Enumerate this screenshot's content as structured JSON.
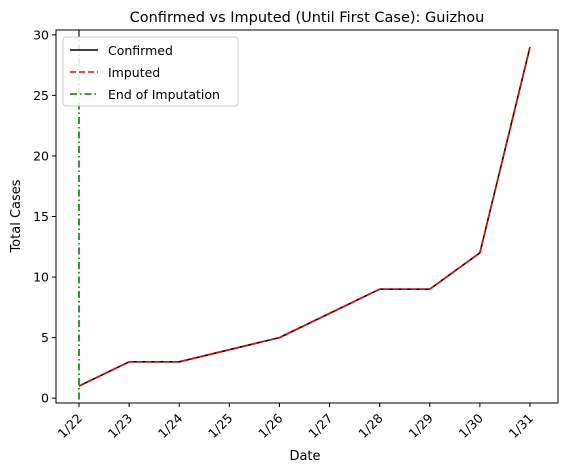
{
  "chart_data": {
    "type": "line",
    "title": "Confirmed vs Imputed (Until First Case): Guizhou",
    "xlabel": "Date",
    "ylabel": "Total Cases",
    "categories": [
      "1/22",
      "1/23",
      "1/24",
      "1/25",
      "1/26",
      "1/27",
      "1/28",
      "1/29",
      "1/30",
      "1/31"
    ],
    "series": [
      {
        "name": "Confirmed",
        "values": [
          1,
          3,
          3,
          4,
          5,
          7,
          9,
          9,
          12,
          29
        ],
        "color": "#000000",
        "style": "solid"
      },
      {
        "name": "Imputed",
        "values": [
          1,
          3,
          3,
          4,
          5,
          7,
          9,
          9,
          12,
          29
        ],
        "color": "#ff0000",
        "style": "dashed"
      }
    ],
    "vline": {
      "name": "End of Imputation",
      "x": "1/22",
      "color": "#008000",
      "style": "dashdot"
    },
    "ylim": [
      -0.4,
      30.4
    ],
    "yticks": [
      0,
      5,
      10,
      15,
      20,
      25,
      30
    ],
    "grid": false,
    "legend_position": "top-left"
  }
}
